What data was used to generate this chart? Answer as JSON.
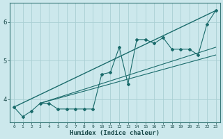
{
  "xlabel": "Humidex (Indice chaleur)",
  "ylabel": "",
  "bg_color": "#cce8ec",
  "grid_color": "#aacfd4",
  "line_color": "#1a6b6b",
  "xlim": [
    -0.5,
    23.5
  ],
  "ylim": [
    3.4,
    6.5
  ],
  "yticks": [
    4,
    5,
    6
  ],
  "xticks": [
    0,
    1,
    2,
    3,
    4,
    5,
    6,
    7,
    8,
    9,
    10,
    11,
    12,
    13,
    14,
    15,
    16,
    17,
    18,
    19,
    20,
    21,
    22,
    23
  ],
  "scatter_x": [
    0,
    1,
    2,
    3,
    4,
    5,
    6,
    7,
    8,
    9,
    10,
    11,
    12,
    13,
    14,
    15,
    16,
    17,
    18,
    19,
    20,
    21,
    22,
    23
  ],
  "scatter_y": [
    3.8,
    3.55,
    3.7,
    3.9,
    3.9,
    3.75,
    3.75,
    3.75,
    3.75,
    3.75,
    4.65,
    4.7,
    5.35,
    4.4,
    5.55,
    5.55,
    5.45,
    5.6,
    5.3,
    5.3,
    5.3,
    5.15,
    5.95,
    6.3
  ],
  "line1_x": [
    0,
    23
  ],
  "line1_y": [
    3.8,
    6.3
  ],
  "line2_x": [
    3,
    23
  ],
  "line2_y": [
    3.9,
    5.35
  ],
  "line3_x": [
    3,
    23
  ],
  "line3_y": [
    3.9,
    5.15
  ]
}
